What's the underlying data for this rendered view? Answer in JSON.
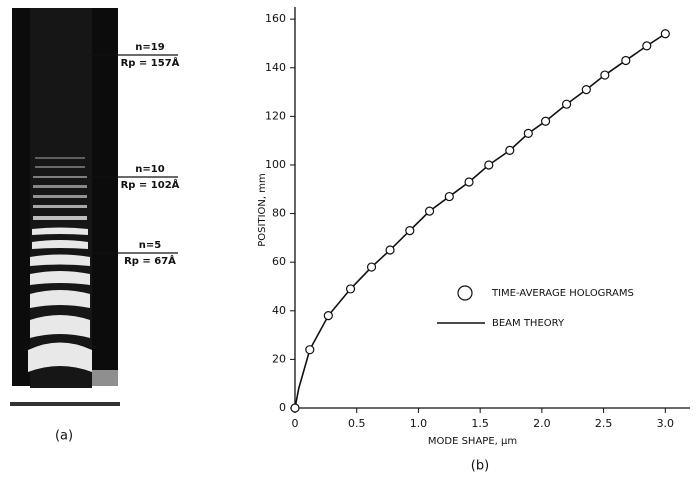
{
  "panel_a": {
    "label": "(a)",
    "annotations": [
      {
        "n": "n=19",
        "r": "Rp = 157Å"
      },
      {
        "n": "n=10",
        "r": "Rp = 102Å"
      },
      {
        "n": "n=5",
        "r": "Rp = 67Å"
      }
    ]
  },
  "chart_data": {
    "type": "scatter-line",
    "panel_label": "(b)",
    "x_label": "MODE SHAPE, μm",
    "y_label": "POSITION, mm",
    "xlim": [
      0,
      3.2
    ],
    "ylim": [
      0,
      165
    ],
    "xticks": [
      0,
      0.5,
      {
        "value": 1,
        "label": "1.0"
      },
      1.5,
      {
        "value": 2,
        "label": "2.0"
      },
      2.5,
      {
        "value": 3,
        "label": "3.0"
      }
    ],
    "yticks": [
      0,
      20,
      40,
      60,
      80,
      100,
      120,
      140,
      160
    ],
    "legend": "right",
    "series": [
      {
        "name": "TIME-AVERAGE HOLOGRAMS",
        "color": "#111111",
        "marker": "circle",
        "x": [
          0,
          0.12,
          0.27,
          0.45,
          0.62,
          0.77,
          0.93,
          1.09,
          1.25,
          1.41,
          1.57,
          1.74,
          1.89,
          2.03,
          2.2,
          2.36,
          2.51,
          2.68,
          2.85,
          3.0
        ],
        "values": [
          0,
          24,
          38,
          49,
          58,
          65,
          73,
          81,
          87,
          93,
          100,
          106,
          113,
          118,
          125,
          131,
          137,
          143,
          149,
          154
        ]
      },
      {
        "name": "BEAM THEORY",
        "color": "#111111",
        "marker": "line",
        "x": [
          0,
          0.03,
          0.12,
          0.27,
          0.45,
          0.62,
          0.77,
          0.93,
          1.09,
          1.25,
          1.41,
          1.57,
          1.74,
          1.89,
          2.03,
          2.2,
          2.36,
          2.51,
          2.68,
          2.85,
          3.0
        ],
        "values": [
          0,
          8,
          24,
          38,
          49,
          58,
          65,
          73,
          81,
          87,
          93,
          100,
          106,
          113,
          118,
          125,
          131,
          137,
          143,
          149,
          154
        ]
      }
    ]
  }
}
